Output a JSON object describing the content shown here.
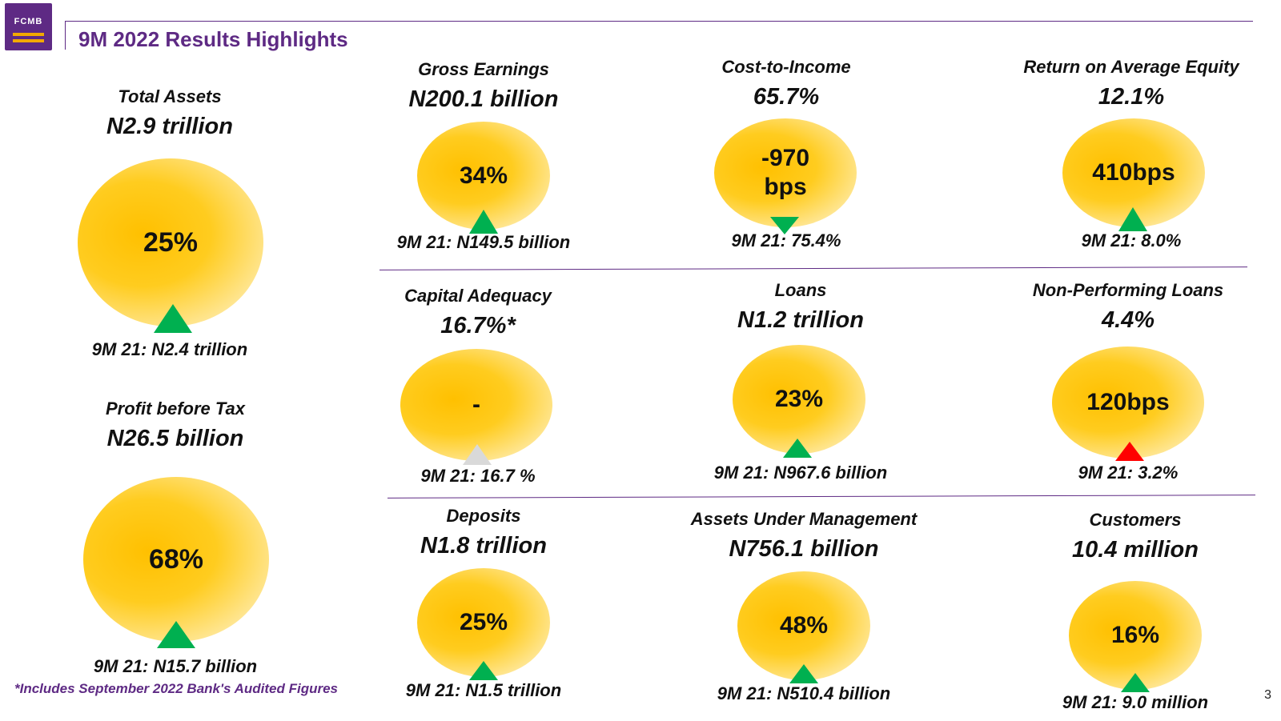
{
  "header": {
    "logo_text": "FCMB",
    "title": "9M 2022 Results Highlights"
  },
  "colors": {
    "brand": "#5e2a84",
    "accent": "#f2a900",
    "up": "#00b050",
    "down_bad": "#ff0000",
    "neutral": "#d9d9d9"
  },
  "metrics": [
    {
      "id": "total-assets",
      "label": "Total Assets",
      "value": "N2.9 trillion",
      "change": "25%",
      "comparison": "9M 21: N2.4 trillion",
      "indicator": "up-green"
    },
    {
      "id": "gross-earnings",
      "label": "Gross Earnings",
      "value": "N200.1 billion",
      "change": "34%",
      "comparison": "9M 21: N149.5 billion",
      "indicator": "up-green"
    },
    {
      "id": "cost-to-income",
      "label": "Cost-to-Income",
      "value": "65.7%",
      "change": "-970\nbps",
      "comparison": "9M 21: 75.4%",
      "indicator": "down-green"
    },
    {
      "id": "roae",
      "label": "Return on Average Equity",
      "value": "12.1%",
      "change": "410bps",
      "comparison": "9M 21: 8.0%",
      "indicator": "up-green"
    },
    {
      "id": "capital-adequacy",
      "label": "Capital Adequacy",
      "value": "16.7%*",
      "change": "-",
      "comparison": "9M 21: 16.7 %",
      "indicator": "up-grey"
    },
    {
      "id": "loans",
      "label": "Loans",
      "value": "N1.2 trillion",
      "change": "23%",
      "comparison": "9M 21: N967.6 billion",
      "indicator": "up-green"
    },
    {
      "id": "npl",
      "label": "Non-Performing Loans",
      "value": "4.4%",
      "change": "120bps",
      "comparison": "9M 21: 3.2%",
      "indicator": "up-red"
    },
    {
      "id": "pbt",
      "label": "Profit before Tax",
      "value": "N26.5 billion",
      "change": "68%",
      "comparison": "9M 21: N15.7 billion",
      "indicator": "up-green"
    },
    {
      "id": "deposits",
      "label": "Deposits",
      "value": "N1.8 trillion",
      "change": "25%",
      "comparison": "9M 21: N1.5 trillion",
      "indicator": "up-green"
    },
    {
      "id": "aum",
      "label": "Assets Under Management",
      "value": "N756.1 billion",
      "change": "48%",
      "comparison": "9M 21: N510.4 billion",
      "indicator": "up-green"
    },
    {
      "id": "customers",
      "label": "Customers",
      "value": "10.4 million",
      "change": "16%",
      "comparison": "9M 21: 9.0 million",
      "indicator": "up-green"
    }
  ],
  "footnote": "*Includes September 2022 Bank's Audited Figures",
  "page_number": "3"
}
